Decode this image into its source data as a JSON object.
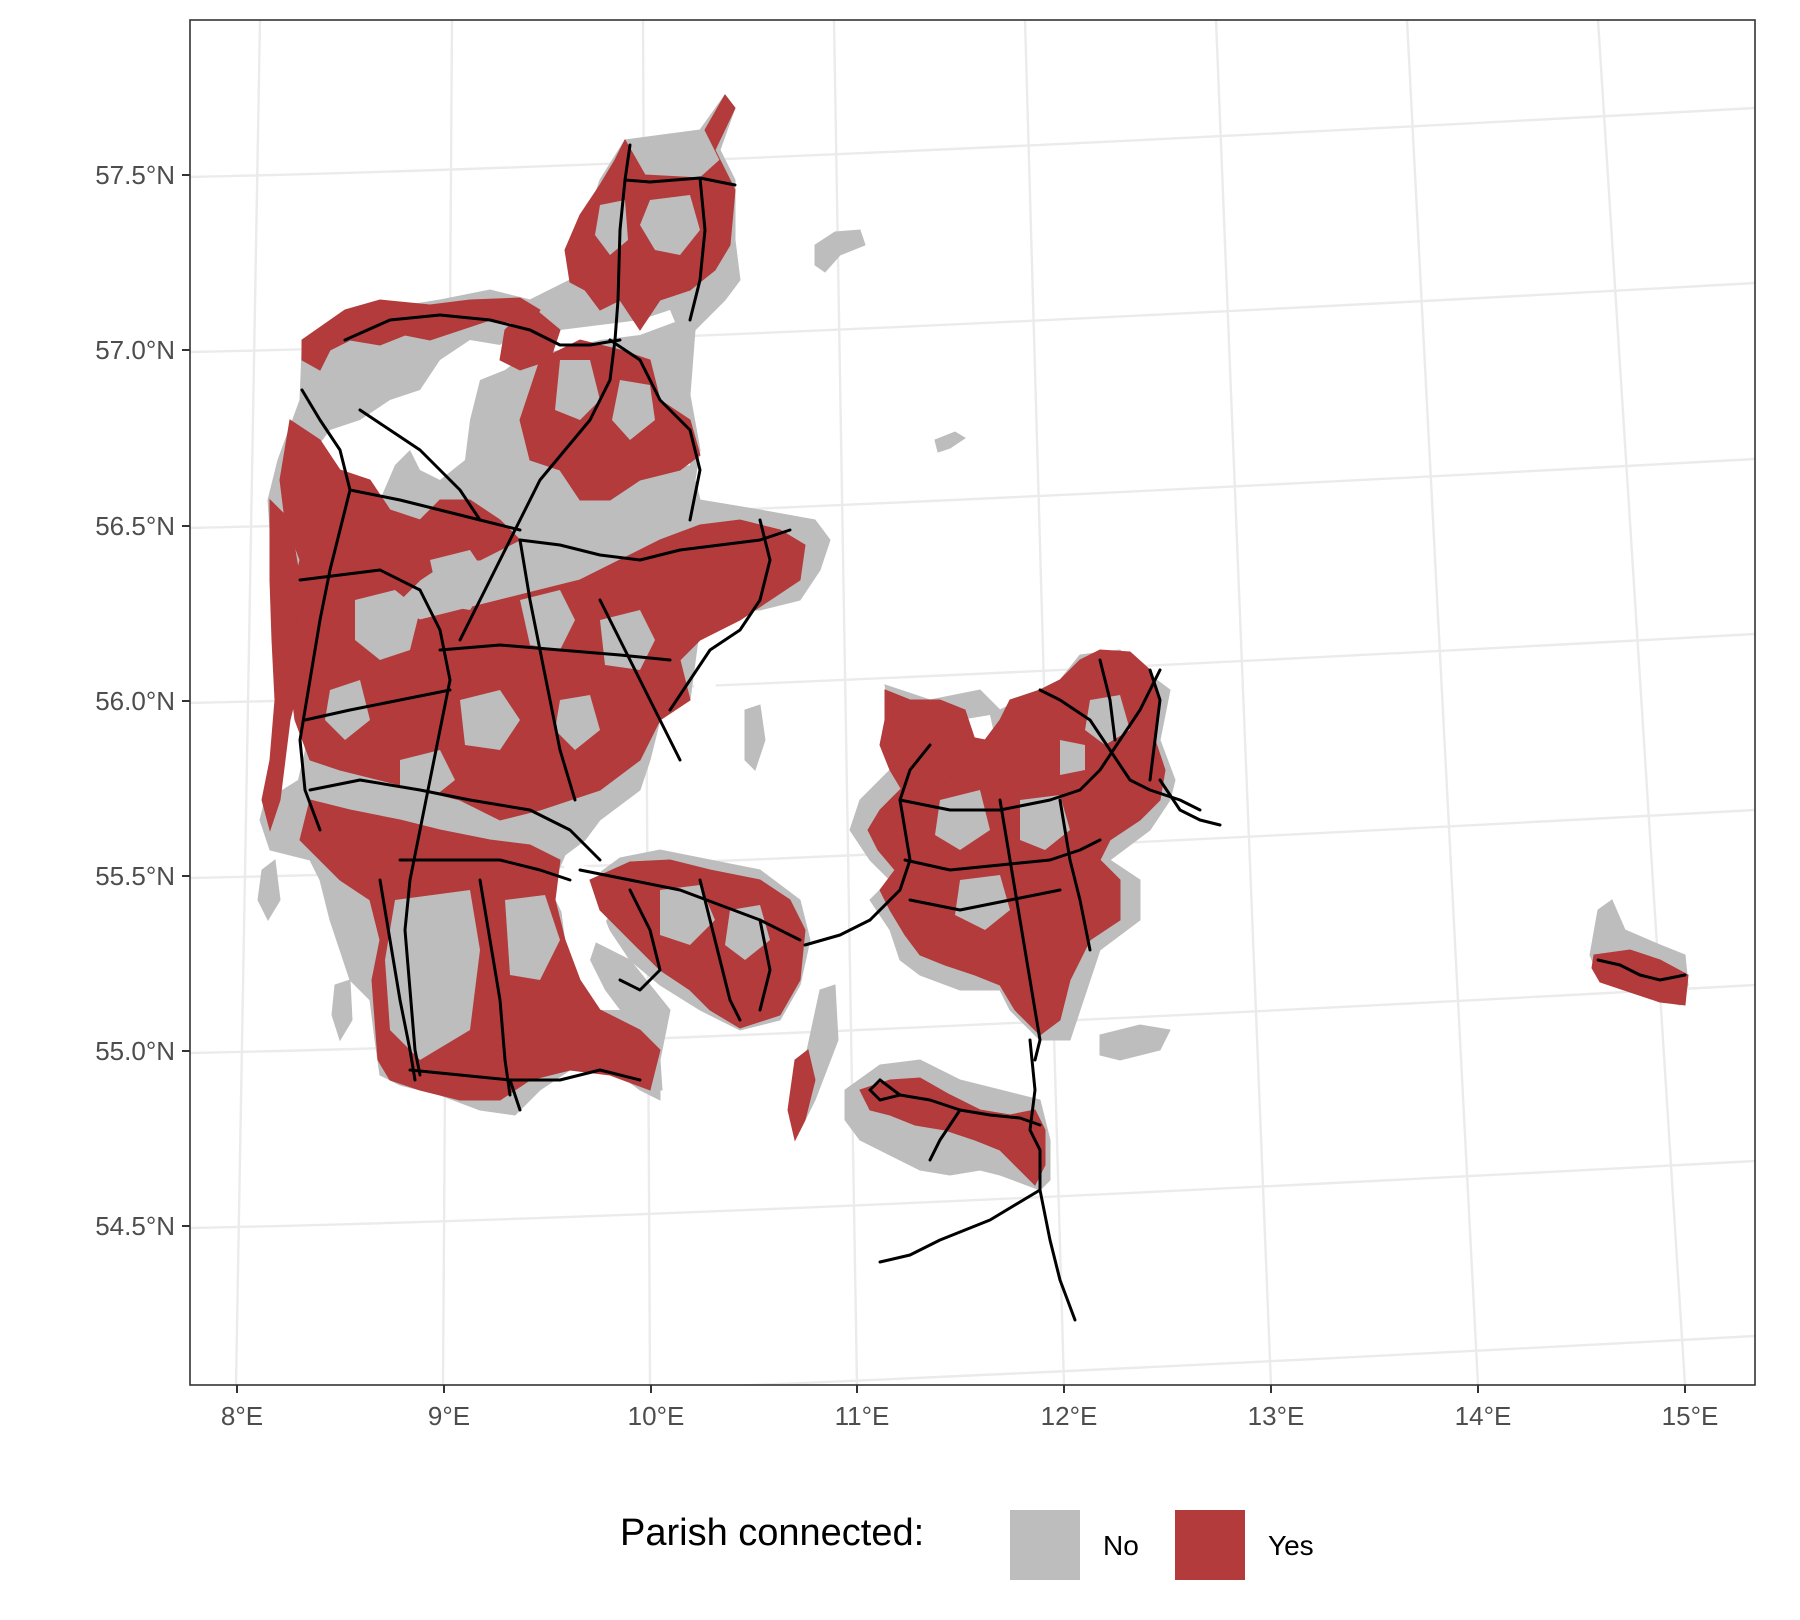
{
  "map": {
    "y_axis_labels": [
      "57.5°N",
      "57.0°N",
      "56.5°N",
      "56.0°N",
      "55.5°N",
      "55.0°N",
      "54.5°N"
    ],
    "x_axis_labels": [
      "8°E",
      "9°E",
      "10°E",
      "11°E",
      "12°E",
      "13°E",
      "14°E",
      "15°E"
    ],
    "legend": {
      "title": "Parish connected:",
      "items": [
        {
          "label": "No",
          "color": "#bdbdbd"
        },
        {
          "label": "Yes",
          "color": "#b33b3b"
        }
      ]
    },
    "colors": {
      "not_connected": "#bdbdbd",
      "connected": "#b33b3b",
      "railway": "#000000",
      "graticule": "#ebebeb",
      "background": "#ffffff"
    }
  }
}
